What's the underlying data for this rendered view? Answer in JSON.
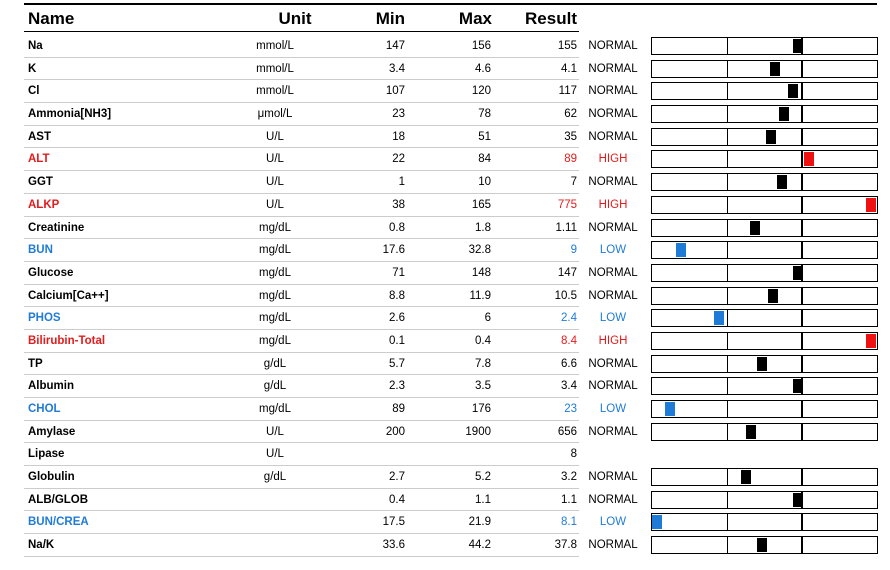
{
  "colors": {
    "high": "#ee1111",
    "low": "#1f7bd8",
    "normal": "#000000"
  },
  "headers": {
    "name": "Name",
    "unit": "Unit",
    "min": "Min",
    "max": "Max",
    "result": "Result"
  },
  "rows": [
    {
      "name": "Na",
      "unit": "mmol/L",
      "min": "147",
      "max": "156",
      "result": "155",
      "status": "NORMAL",
      "level": 0.65
    },
    {
      "name": "K",
      "unit": "mmol/L",
      "min": "3.4",
      "max": "4.6",
      "result": "4.1",
      "status": "NORMAL",
      "level": 0.55
    },
    {
      "name": "Cl",
      "unit": "mmol/L",
      "min": "107",
      "max": "120",
      "result": "117",
      "status": "NORMAL",
      "level": 0.63
    },
    {
      "name": "Ammonia[NH3]",
      "unit": "μmol/L",
      "min": "23",
      "max": "78",
      "result": "62",
      "status": "NORMAL",
      "level": 0.59
    },
    {
      "name": "AST",
      "unit": "U/L",
      "min": "18",
      "max": "51",
      "result": "35",
      "status": "NORMAL",
      "level": 0.53
    },
    {
      "name": "ALT",
      "unit": "U/L",
      "min": "22",
      "max": "84",
      "result": "89",
      "status": "HIGH",
      "level": 0.7
    },
    {
      "name": "GGT",
      "unit": "U/L",
      "min": "1",
      "max": "10",
      "result": "7",
      "status": "NORMAL",
      "level": 0.58
    },
    {
      "name": "ALKP",
      "unit": "U/L",
      "min": "38",
      "max": "165",
      "result": "775",
      "status": "HIGH",
      "level": 1.0
    },
    {
      "name": "Creatinine",
      "unit": "mg/dL",
      "min": "0.8",
      "max": "1.8",
      "result": "1.11",
      "status": "NORMAL",
      "level": 0.46
    },
    {
      "name": "BUN",
      "unit": "mg/dL",
      "min": "17.6",
      "max": "32.8",
      "result": "9",
      "status": "LOW",
      "level": 0.13
    },
    {
      "name": "Glucose",
      "unit": "mg/dL",
      "min": "71",
      "max": "148",
      "result": "147",
      "status": "NORMAL",
      "level": 0.65
    },
    {
      "name": "Calcium[Ca++]",
      "unit": "mg/dL",
      "min": "8.8",
      "max": "11.9",
      "result": "10.5",
      "status": "NORMAL",
      "level": 0.54
    },
    {
      "name": "PHOS",
      "unit": "mg/dL",
      "min": "2.6",
      "max": "6",
      "result": "2.4",
      "status": "LOW",
      "level": 0.3
    },
    {
      "name": "Bilirubin-Total",
      "unit": "mg/dL",
      "min": "0.1",
      "max": "0.4",
      "result": "8.4",
      "status": "HIGH",
      "level": 1.0
    },
    {
      "name": "TP",
      "unit": "g/dL",
      "min": "5.7",
      "max": "7.8",
      "result": "6.6",
      "status": "NORMAL",
      "level": 0.49
    },
    {
      "name": "Albumin",
      "unit": "g/dL",
      "min": "2.3",
      "max": "3.5",
      "result": "3.4",
      "status": "NORMAL",
      "level": 0.65
    },
    {
      "name": "CHOL",
      "unit": "mg/dL",
      "min": "89",
      "max": "176",
      "result": "23",
      "status": "LOW",
      "level": 0.08
    },
    {
      "name": "Amylase",
      "unit": "U/L",
      "min": "200",
      "max": "1900",
      "result": "656",
      "status": "NORMAL",
      "level": 0.44
    },
    {
      "name": "Lipase",
      "unit": "U/L",
      "min": "",
      "max": "",
      "result": "8",
      "status": "",
      "level": null
    },
    {
      "name": "Globulin",
      "unit": "g/dL",
      "min": "2.7",
      "max": "5.2",
      "result": "3.2",
      "status": "NORMAL",
      "level": 0.42
    },
    {
      "name": "ALB/GLOB",
      "unit": "",
      "min": "0.4",
      "max": "1.1",
      "result": "1.1",
      "status": "NORMAL",
      "level": 0.65
    },
    {
      "name": "BUN/CREA",
      "unit": "",
      "min": "17.5",
      "max": "21.9",
      "result": "8.1",
      "status": "LOW",
      "level": 0.0
    },
    {
      "name": "Na/K",
      "unit": "",
      "min": "33.6",
      "max": "44.2",
      "result": "37.8",
      "status": "NORMAL",
      "level": 0.49
    }
  ]
}
